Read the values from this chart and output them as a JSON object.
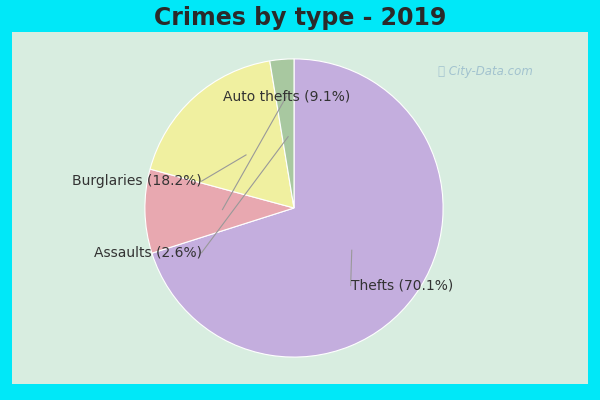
{
  "title": "Crimes by type - 2019",
  "slices": [
    {
      "label": "Thefts",
      "pct": 70.1,
      "color": "#c4aede"
    },
    {
      "label": "Auto thefts",
      "pct": 9.1,
      "color": "#e8a8b0"
    },
    {
      "label": "Burglaries",
      "pct": 18.2,
      "color": "#f0f0a0"
    },
    {
      "label": "Assaults",
      "pct": 2.6,
      "color": "#a8c8a0"
    }
  ],
  "bg_color_top": "#00e8f8",
  "bg_color_inner": "#d8ede0",
  "title_fontsize": 17,
  "label_fontsize": 10,
  "watermark": "ⓘ City-Data.com",
  "startangle": 90,
  "label_data": [
    {
      "text": "Thefts (70.1%)",
      "xt": 0.38,
      "yt": -0.52,
      "ha": "left",
      "xw": 0.18,
      "yw": -0.3
    },
    {
      "text": "Auto thefts (9.1%)",
      "xt": -0.05,
      "yt": 0.75,
      "ha": "center",
      "xw": 0.08,
      "yw": 0.5
    },
    {
      "text": "Burglaries (18.2%)",
      "xt": -0.62,
      "yt": 0.18,
      "ha": "right",
      "xw": -0.28,
      "yw": 0.22
    },
    {
      "text": "Assaults (2.6%)",
      "xt": -0.62,
      "yt": -0.3,
      "ha": "right",
      "xw": -0.22,
      "yw": -0.4
    }
  ]
}
